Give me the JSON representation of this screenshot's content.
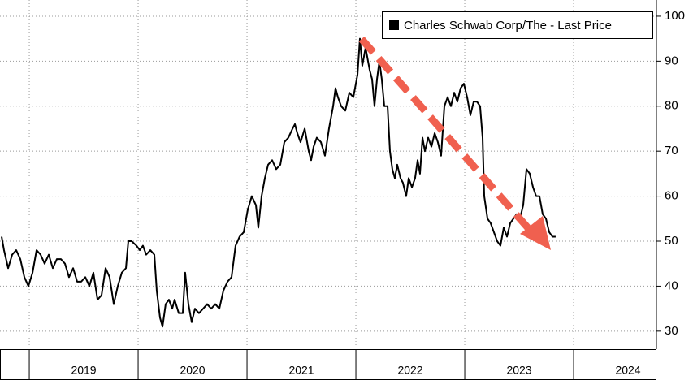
{
  "chart_data": {
    "type": "line",
    "x": [
      2018.746,
      2018.768,
      2018.806,
      2018.843,
      2018.88,
      2018.918,
      2018.955,
      2018.992,
      2019.03,
      2019.067,
      2019.104,
      2019.141,
      2019.179,
      2019.216,
      2019.253,
      2019.291,
      2019.328,
      2019.365,
      2019.403,
      2019.44,
      2019.477,
      2019.515,
      2019.552,
      2019.589,
      2019.627,
      2019.664,
      2019.701,
      2019.738,
      2019.776,
      2019.813,
      2019.85,
      2019.888,
      2019.91,
      2019.94,
      2019.985,
      2020.015,
      2020.044,
      2020.074,
      2020.112,
      2020.149,
      2020.171,
      2020.201,
      2020.224,
      2020.253,
      2020.283,
      2020.313,
      2020.335,
      2020.373,
      2020.41,
      2020.432,
      2020.462,
      2020.492,
      2020.522,
      2020.559,
      2020.597,
      2020.634,
      2020.671,
      2020.709,
      2020.746,
      2020.783,
      2020.821,
      2020.858,
      2020.895,
      2020.932,
      2020.97,
      2021.007,
      2021.044,
      2021.082,
      2021.104,
      2021.134,
      2021.164,
      2021.194,
      2021.231,
      2021.268,
      2021.306,
      2021.343,
      2021.38,
      2021.418,
      2021.44,
      2021.462,
      2021.492,
      2021.53,
      2021.567,
      2021.589,
      2021.612,
      2021.641,
      2021.679,
      2021.716,
      2021.753,
      2021.791,
      2021.813,
      2021.835,
      2021.865,
      2021.903,
      2021.94,
      2021.977,
      2022.015,
      2022.037,
      2022.059,
      2022.089,
      2022.127,
      2022.149,
      2022.171,
      2022.194,
      2022.216,
      2022.238,
      2022.261,
      2022.291,
      2022.313,
      2022.335,
      2022.358,
      2022.38,
      2022.41,
      2022.432,
      2022.462,
      2022.485,
      2022.515,
      2022.544,
      2022.567,
      2022.589,
      2022.612,
      2022.634,
      2022.664,
      2022.694,
      2022.724,
      2022.753,
      2022.783,
      2022.813,
      2022.843,
      2022.873,
      2022.903,
      2022.932,
      2022.962,
      2022.992,
      2023.022,
      2023.052,
      2023.082,
      2023.112,
      2023.141,
      2023.164,
      2023.179,
      2023.209,
      2023.238,
      2023.268,
      2023.298,
      2023.328,
      2023.358,
      2023.388,
      2023.418,
      2023.447,
      2023.477,
      2023.507,
      2023.537,
      2023.567,
      2023.597,
      2023.627,
      2023.656,
      2023.686,
      2023.716,
      2023.746,
      2023.776,
      2023.806,
      2023.835
    ],
    "series": [
      {
        "name": "Charles Schwab Corp/The - Last Price",
        "color": "#000000",
        "values": [
          51,
          48,
          44,
          47,
          48,
          46,
          42,
          40,
          43,
          48,
          47,
          45,
          47,
          44,
          46,
          46,
          45,
          42,
          44,
          41,
          41,
          42,
          40,
          43,
          37,
          38,
          44,
          42,
          36,
          40,
          43,
          44,
          50,
          50,
          49,
          48,
          49,
          47,
          48,
          47,
          39,
          33,
          31,
          36,
          37,
          35,
          37,
          34,
          34,
          43,
          36,
          32,
          35,
          34,
          35,
          36,
          35,
          36,
          35,
          39,
          41,
          42,
          49,
          51,
          52,
          57,
          60,
          58,
          53,
          60,
          64,
          67,
          68,
          66,
          67,
          72,
          73,
          75,
          76,
          74,
          72,
          75,
          70,
          68,
          71,
          73,
          72,
          69,
          75,
          80,
          84,
          82,
          80,
          79,
          83,
          82,
          87,
          95,
          89,
          93,
          88,
          86,
          80,
          86,
          90,
          86,
          80,
          80,
          70,
          66,
          64,
          67,
          64,
          63,
          60,
          64,
          62,
          64,
          68,
          65,
          73,
          70,
          73,
          71,
          74,
          72,
          69,
          80,
          82,
          80,
          83,
          81,
          84,
          85,
          82,
          78,
          81,
          81,
          80,
          73,
          60,
          55,
          54,
          52,
          50,
          49,
          53,
          51,
          54,
          55,
          56,
          55,
          58,
          66,
          65,
          62,
          60,
          60,
          56,
          55,
          52,
          51,
          51
        ]
      }
    ],
    "xlim": [
      2018.731,
      2024.761
    ],
    "xticks": [
      2019,
      2020,
      2021,
      2022,
      2023,
      2024
    ],
    "ylim": [
      26,
      103.6
    ],
    "yticks": [
      30,
      40,
      50,
      60,
      70,
      80,
      90,
      100
    ],
    "grid": true
  }
}
